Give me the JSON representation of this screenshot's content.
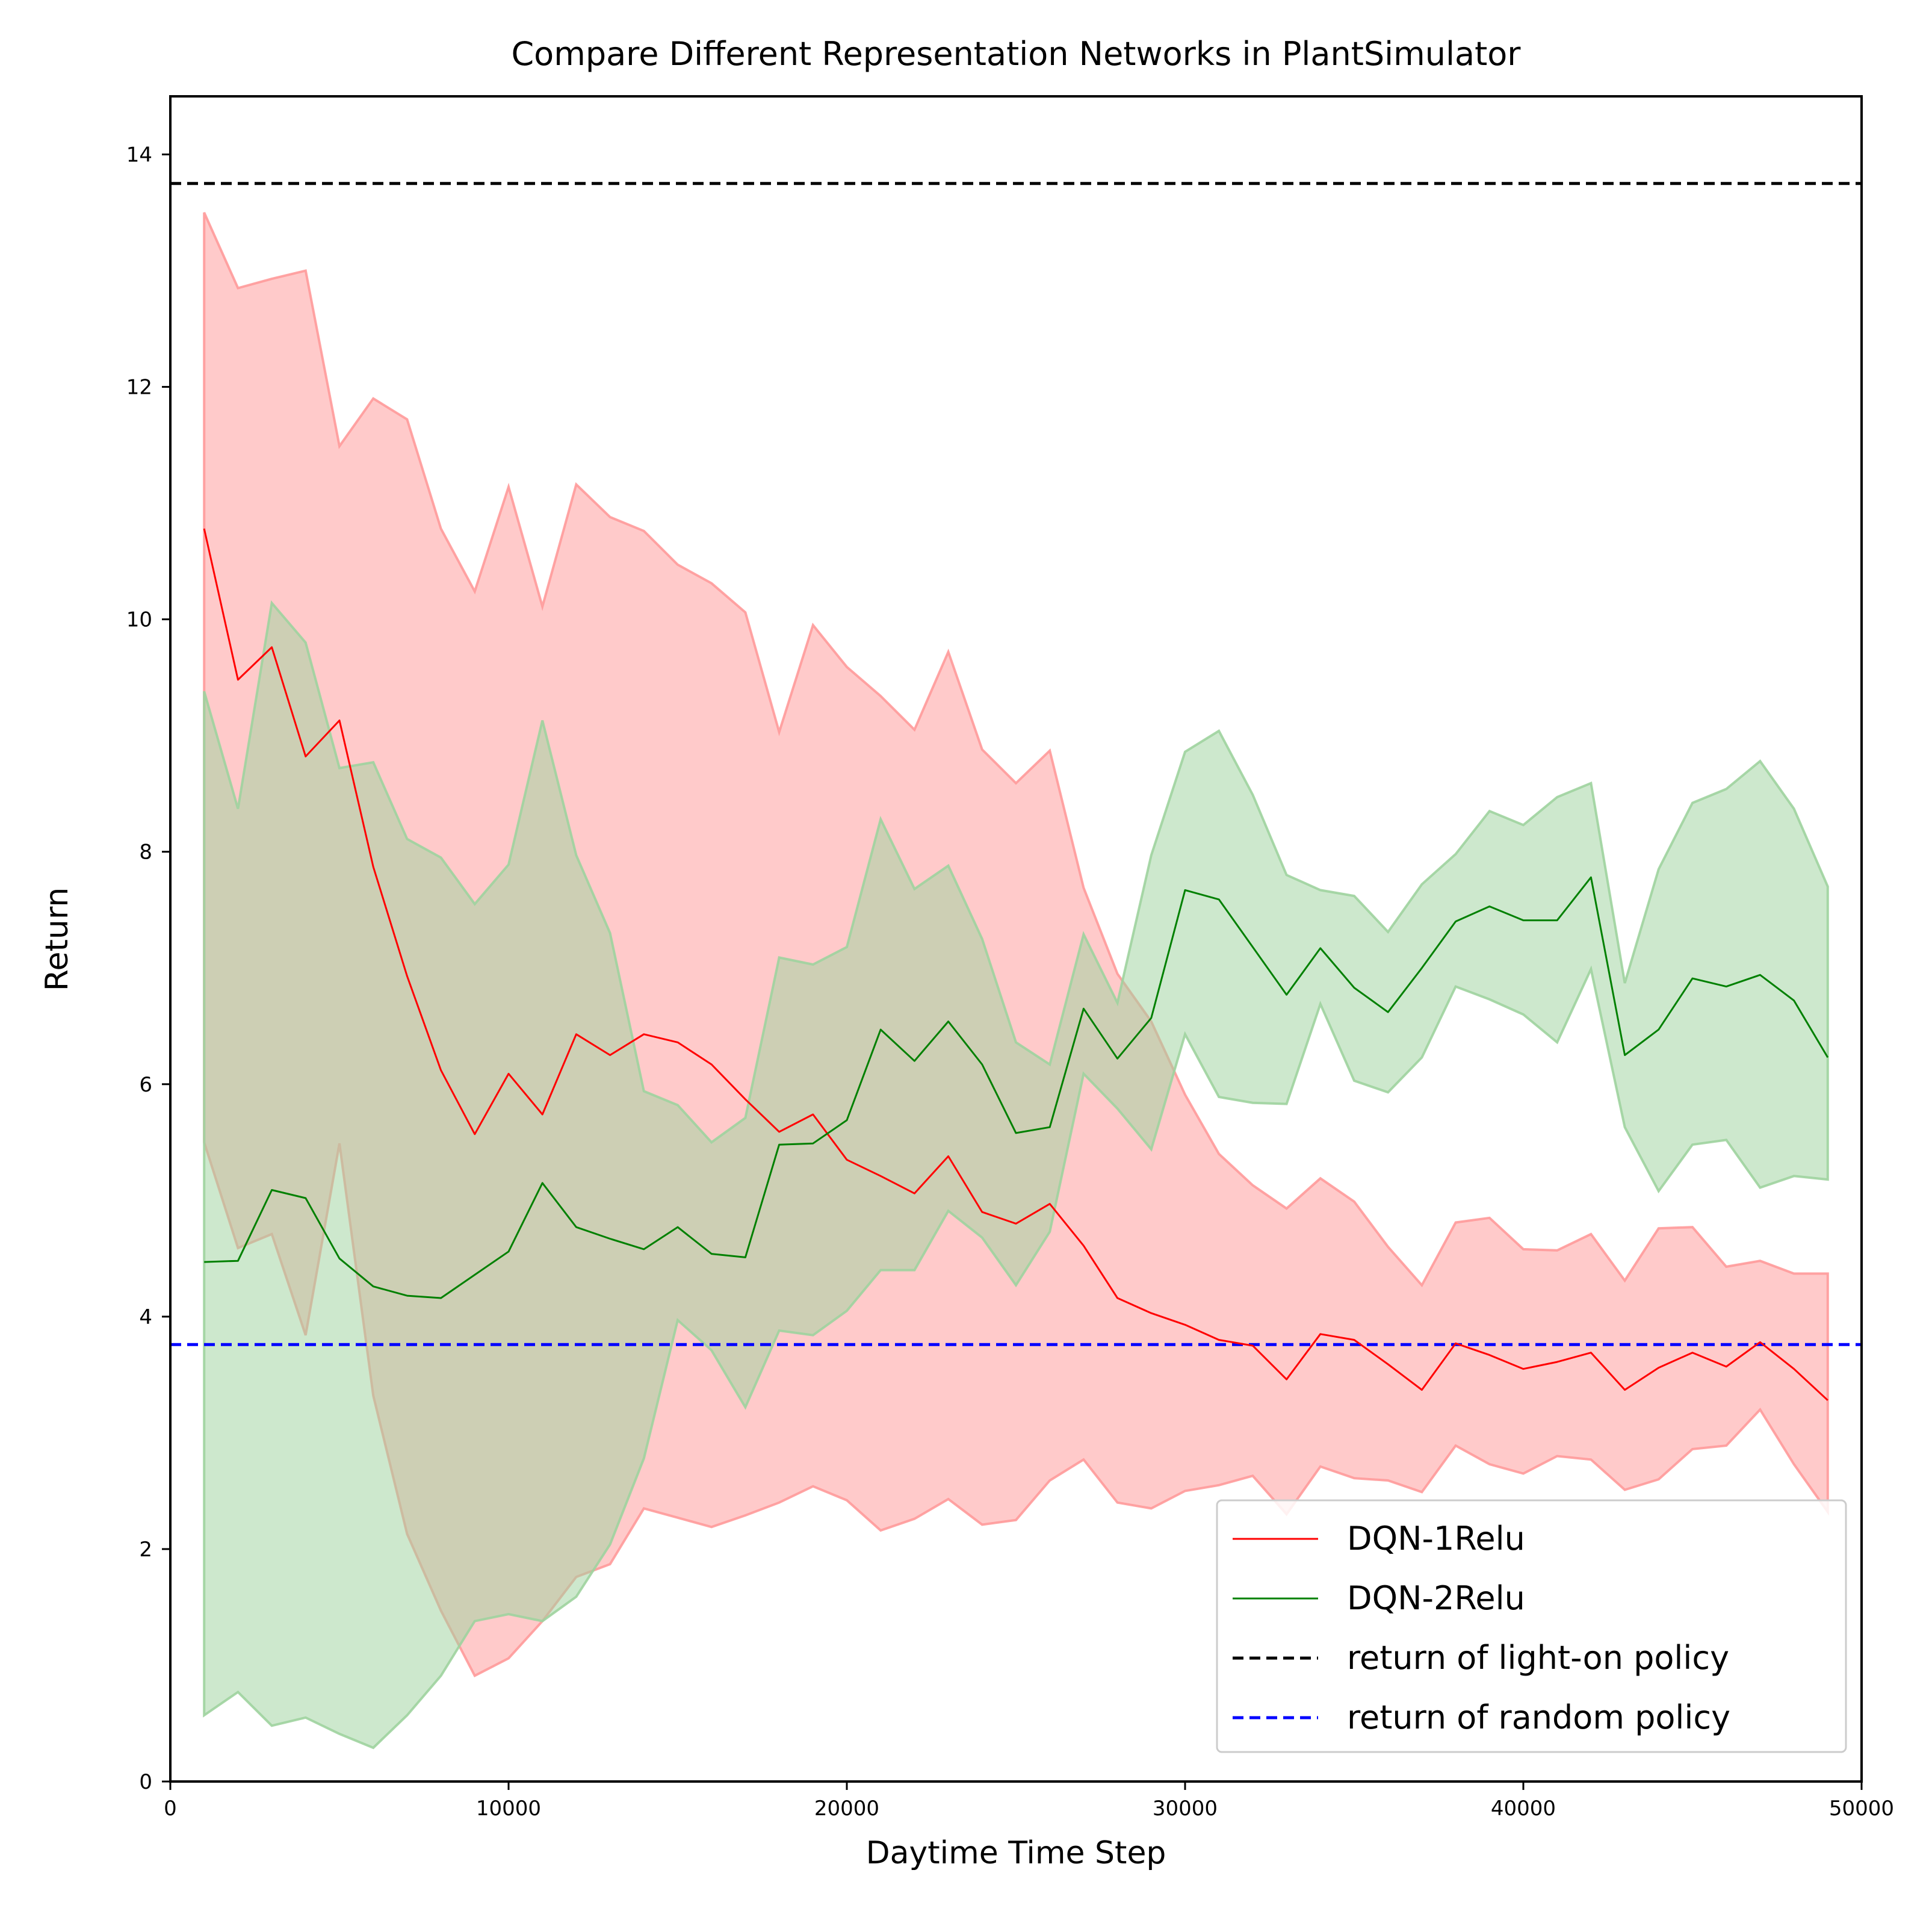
{
  "chart_data": {
    "type": "line",
    "title": "Compare Different Representation Networks in PlantSimulator",
    "xlabel": "Daytime Time Step",
    "ylabel": "Return",
    "xlim": [
      0,
      50000
    ],
    "ylim": [
      0,
      14.5
    ],
    "xticks": [
      0,
      10000,
      20000,
      30000,
      40000,
      50000
    ],
    "xtick_labels": [
      "0",
      "10000",
      "20000",
      "30000",
      "40000",
      "50000"
    ],
    "yticks": [
      0,
      2,
      4,
      6,
      8,
      10,
      12,
      14
    ],
    "ytick_labels": [
      "0",
      "2",
      "4",
      "6",
      "8",
      "10",
      "12",
      "14"
    ],
    "grid": false,
    "legend_position": "lower-right",
    "x": [
      1000,
      2000,
      3000,
      4000,
      5000,
      6000,
      7000,
      8000,
      9000,
      10000,
      11000,
      12000,
      13000,
      14000,
      15000,
      16000,
      17000,
      18000,
      19000,
      20000,
      21000,
      22000,
      23000,
      24000,
      25000,
      26000,
      27000,
      28000,
      29000,
      30000,
      31000,
      32000,
      33000,
      34000,
      35000,
      36000,
      37000,
      38000,
      39000,
      40000,
      41000,
      42000,
      43000,
      44000,
      45000,
      46000,
      47000,
      48000,
      49000
    ],
    "series": [
      {
        "name": "DQN-1Relu",
        "color": "#ff0000",
        "band_color": "#ff9a9a",
        "mean": [
          10.78,
          9.48,
          9.76,
          8.82,
          9.13,
          7.87,
          6.93,
          6.12,
          5.57,
          6.09,
          5.74,
          6.43,
          6.25,
          6.43,
          6.36,
          6.17,
          5.87,
          5.59,
          5.74,
          5.35,
          5.21,
          5.06,
          5.38,
          4.9,
          4.8,
          4.97,
          4.61,
          4.16,
          4.03,
          3.93,
          3.8,
          3.75,
          3.46,
          3.85,
          3.8,
          3.59,
          3.37,
          3.77,
          3.67,
          3.55,
          3.61,
          3.69,
          3.37,
          3.56,
          3.69,
          3.57,
          3.78,
          3.55,
          3.28
        ],
        "upper": [
          13.5,
          12.85,
          12.93,
          13.0,
          11.49,
          11.9,
          11.72,
          10.78,
          10.24,
          11.14,
          10.11,
          11.16,
          10.88,
          10.76,
          10.47,
          10.31,
          10.06,
          9.03,
          9.95,
          9.59,
          9.34,
          9.05,
          9.72,
          8.88,
          8.59,
          8.87,
          7.69,
          6.95,
          6.54,
          5.91,
          5.4,
          5.13,
          4.93,
          5.19,
          4.99,
          4.6,
          4.27,
          4.81,
          4.85,
          4.58,
          4.57,
          4.71,
          4.31,
          4.76,
          4.77,
          4.43,
          4.48,
          4.37,
          4.37
        ],
        "lower": [
          5.5,
          4.59,
          4.71,
          3.84,
          5.49,
          3.32,
          2.13,
          1.47,
          0.91,
          1.06,
          1.38,
          1.76,
          1.87,
          2.35,
          2.27,
          2.19,
          2.29,
          2.4,
          2.54,
          2.42,
          2.16,
          2.26,
          2.43,
          2.21,
          2.25,
          2.59,
          2.77,
          2.4,
          2.35,
          2.5,
          2.55,
          2.63,
          2.3,
          2.71,
          2.61,
          2.59,
          2.49,
          2.89,
          2.73,
          2.65,
          2.8,
          2.77,
          2.51,
          2.6,
          2.86,
          2.89,
          3.2,
          2.73,
          2.32
        ]
      },
      {
        "name": "DQN-2Relu",
        "color": "#008000",
        "band_color": "#9fd39f",
        "mean": [
          4.47,
          4.48,
          5.09,
          5.02,
          4.5,
          4.26,
          4.18,
          4.16,
          4.36,
          4.56,
          5.15,
          4.77,
          4.67,
          4.58,
          4.77,
          4.54,
          4.51,
          5.48,
          5.49,
          5.69,
          6.47,
          6.2,
          6.54,
          6.17,
          5.58,
          5.63,
          6.65,
          6.22,
          6.57,
          7.67,
          7.59,
          7.18,
          6.77,
          7.17,
          6.83,
          6.62,
          7.0,
          7.4,
          7.53,
          7.41,
          7.41,
          7.78,
          6.25,
          6.47,
          6.91,
          6.84,
          6.94,
          6.72,
          6.23
        ],
        "upper": [
          9.38,
          8.37,
          10.14,
          9.8,
          8.72,
          8.77,
          8.11,
          7.95,
          7.55,
          7.89,
          9.13,
          7.97,
          7.3,
          5.94,
          5.82,
          5.5,
          5.71,
          7.09,
          7.03,
          7.18,
          8.28,
          7.68,
          7.88,
          7.25,
          6.36,
          6.17,
          7.29,
          6.7,
          7.97,
          8.86,
          9.04,
          8.49,
          7.8,
          7.67,
          7.62,
          7.31,
          7.72,
          7.98,
          8.35,
          8.23,
          8.47,
          8.59,
          6.87,
          7.85,
          8.42,
          8.54,
          8.78,
          8.37,
          7.7
        ],
        "lower": [
          0.57,
          0.77,
          0.48,
          0.55,
          0.41,
          0.29,
          0.57,
          0.91,
          1.38,
          1.44,
          1.38,
          1.59,
          2.04,
          2.78,
          3.97,
          3.71,
          3.22,
          3.88,
          3.84,
          4.05,
          4.4,
          4.4,
          4.91,
          4.68,
          4.27,
          4.73,
          6.09,
          5.79,
          5.44,
          6.43,
          5.89,
          5.84,
          5.83,
          6.69,
          6.03,
          5.93,
          6.23,
          6.84,
          6.73,
          6.6,
          6.36,
          6.99,
          5.63,
          5.08,
          5.48,
          5.52,
          5.11,
          5.21,
          5.18
        ]
      }
    ],
    "reference_lines": [
      {
        "name": "return of light-on policy",
        "y": 13.75,
        "color": "#000000",
        "style": "dashed"
      },
      {
        "name": "return of random policy",
        "y": 3.76,
        "color": "#0000ff",
        "style": "dashed"
      }
    ]
  }
}
